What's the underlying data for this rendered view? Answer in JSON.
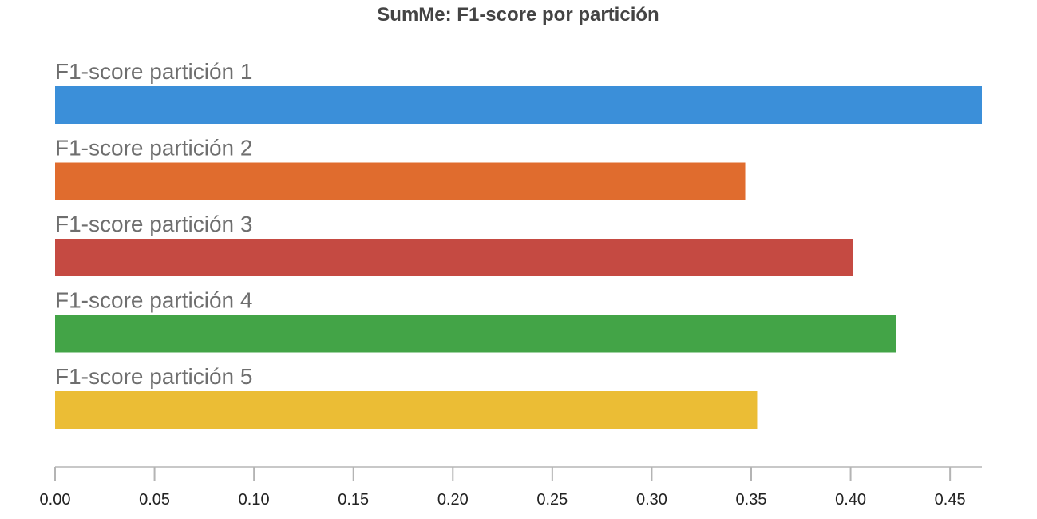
{
  "chart_data": {
    "type": "bar",
    "orientation": "horizontal",
    "title": "SumMe: F1-score por partición",
    "xlabel": "",
    "ylabel": "",
    "categories": [
      "F1-score partición 1",
      "F1-score partición 2",
      "F1-score partición 3",
      "F1-score partición 4",
      "F1-score partición 5"
    ],
    "values": [
      0.466,
      0.347,
      0.401,
      0.423,
      0.353
    ],
    "colors": [
      "#3b8fd9",
      "#e06c2e",
      "#c54a42",
      "#43a447",
      "#ebbd35"
    ],
    "xlim": [
      0,
      0.466
    ],
    "xticks": [
      0.0,
      0.05,
      0.1,
      0.15,
      0.2,
      0.25,
      0.3,
      0.35,
      0.4,
      0.45
    ],
    "xtick_labels": [
      "0.00",
      "0.05",
      "0.10",
      "0.15",
      "0.20",
      "0.25",
      "0.30",
      "0.35",
      "0.40",
      "0.45"
    ],
    "grid": false,
    "legend": "none"
  }
}
